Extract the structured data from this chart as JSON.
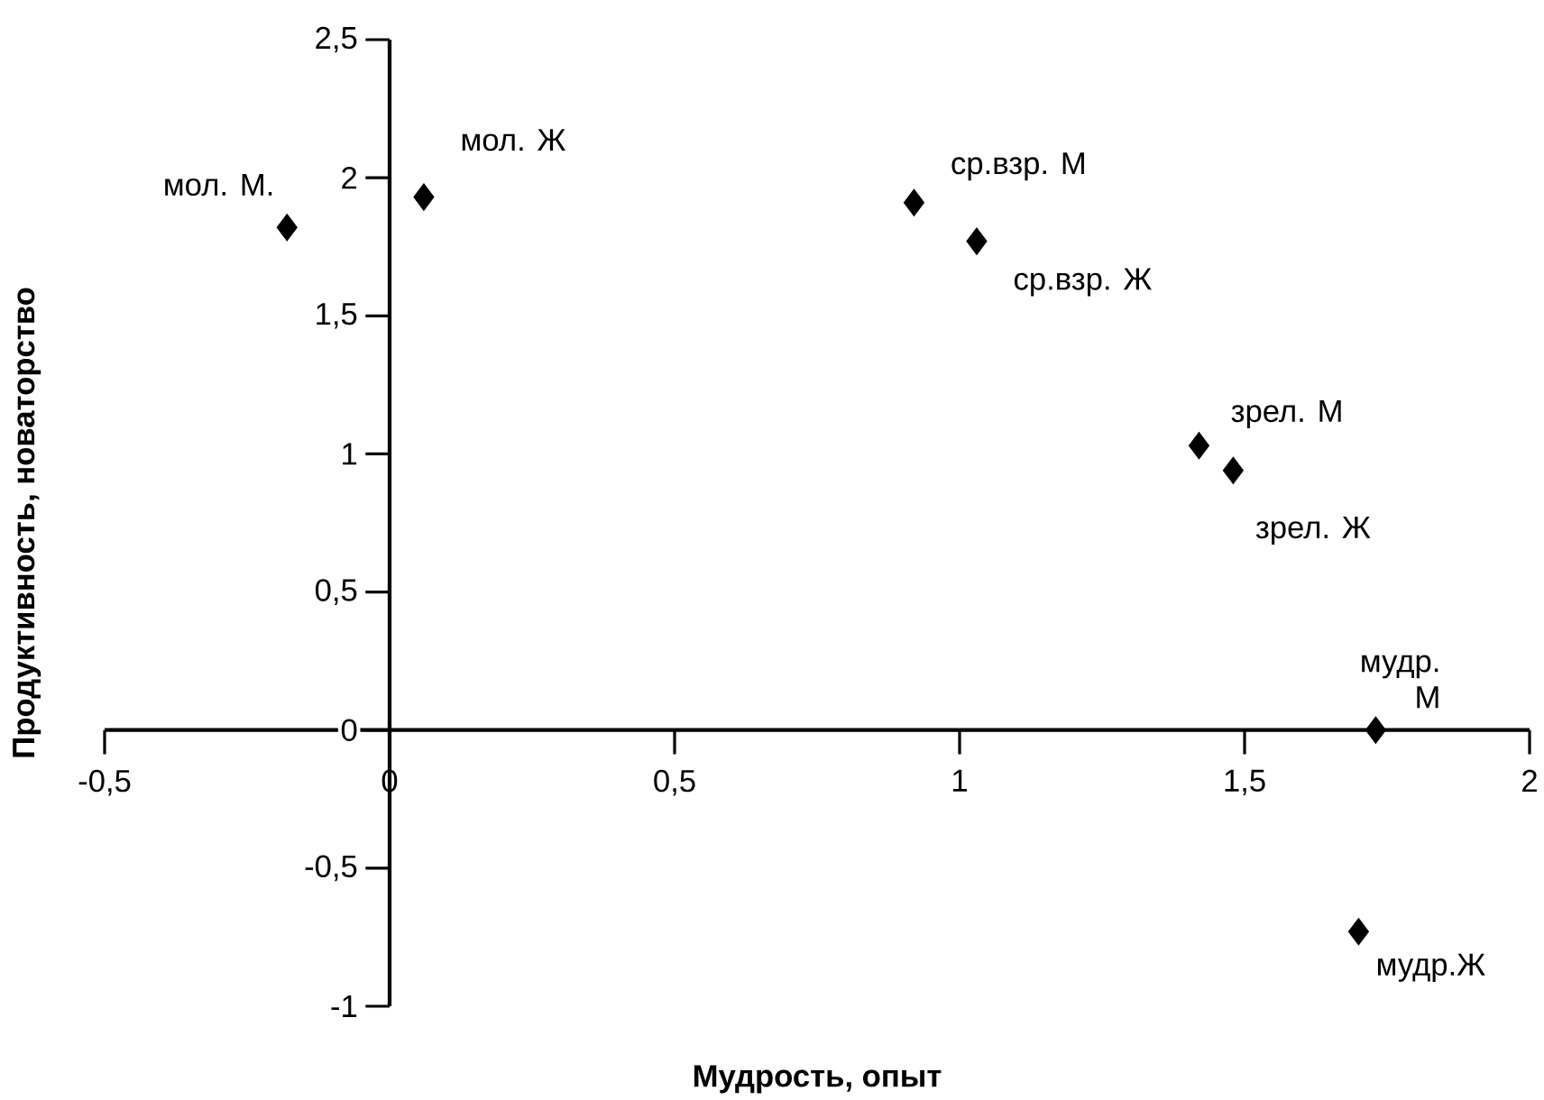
{
  "chart_data": {
    "type": "scatter",
    "xlabel": "Мудрость, опыт",
    "ylabel": "Продуктивность, новаторство",
    "series": [
      {
        "color": "#000000",
        "x": [
          -0.18,
          0.06,
          0.92,
          1.03,
          1.42,
          1.48,
          1.73,
          1.7
        ],
        "values": [
          1.82,
          1.93,
          1.91,
          1.77,
          1.03,
          0.94,
          0,
          -0.73
        ]
      }
    ],
    "marker": "diamond",
    "annotations": [
      {
        "text": "мол. М.",
        "x": -0.18,
        "y": 1.82
      },
      {
        "text": "мол. Ж",
        "x": 0.06,
        "y": 1.93
      },
      {
        "text": "ср.взр. М",
        "x": 0.92,
        "y": 1.91
      },
      {
        "text": "ср.взр. Ж",
        "x": 1.03,
        "y": 1.77
      },
      {
        "text": "зрел. М",
        "x": 1.42,
        "y": 1.03
      },
      {
        "text": "зрел. Ж",
        "x": 1.48,
        "y": 0.94
      },
      {
        "text": "мудр. М",
        "x": 1.73,
        "y": 0
      },
      {
        "text": "мудр.Ж",
        "x": 1.7,
        "y": -0.73
      }
    ],
    "xlim": [
      -0.5,
      2
    ],
    "ylim": [
      -1,
      2.5
    ],
    "xticks": [
      {
        "value": -0.5,
        "label": "-0,5"
      },
      0,
      {
        "value": 0.5,
        "label": "0,5"
      },
      1,
      {
        "value": 1.5,
        "label": "1,5"
      },
      2
    ],
    "yticks": [
      {
        "value": -1,
        "label": "-1"
      },
      {
        "value": -0.5,
        "label": "-0,5"
      },
      0,
      {
        "value": 0.5,
        "label": "0,5"
      },
      1,
      {
        "value": 1.5,
        "label": "1,5"
      },
      2,
      {
        "value": 2.5,
        "label": "2,5"
      }
    ],
    "grid": false
  }
}
